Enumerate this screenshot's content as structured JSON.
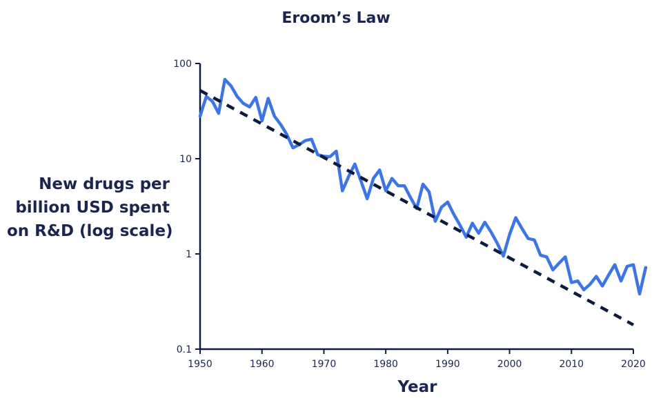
{
  "chart_data": {
    "type": "line",
    "title": "Eroom’s Law",
    "xlabel": "Year",
    "ylabel_lines": [
      "New drugs per",
      "billion USD spent",
      "on R&D (log scale)"
    ],
    "xlim": [
      1950,
      2020
    ],
    "ylim": [
      0.1,
      100
    ],
    "yscale": "log",
    "x_ticks": [
      1950,
      1960,
      1970,
      1980,
      1990,
      2000,
      2010,
      2020
    ],
    "y_ticks": [
      {
        "value": 0.1,
        "label": "0.1"
      },
      {
        "value": 1,
        "label": "1"
      },
      {
        "value": 10,
        "label": "10"
      },
      {
        "value": 100,
        "label": "100"
      }
    ],
    "grid": false,
    "series": [
      {
        "color": "#3d74e6",
        "style": "solid",
        "points": [
          [
            1950,
            28
          ],
          [
            1951,
            45
          ],
          [
            1952,
            40
          ],
          [
            1953,
            30
          ],
          [
            1954,
            68
          ],
          [
            1955,
            58
          ],
          [
            1956,
            45
          ],
          [
            1957,
            38
          ],
          [
            1958,
            35
          ],
          [
            1959,
            44
          ],
          [
            1960,
            25
          ],
          [
            1961,
            43
          ],
          [
            1962,
            28
          ],
          [
            1963,
            23
          ],
          [
            1964,
            18
          ],
          [
            1965,
            13
          ],
          [
            1966,
            14
          ],
          [
            1967,
            15.5
          ],
          [
            1968,
            16
          ],
          [
            1969,
            11
          ],
          [
            1970,
            10.6
          ],
          [
            1971,
            10.5
          ],
          [
            1972,
            12
          ],
          [
            1973,
            4.6
          ],
          [
            1974,
            6.5
          ],
          [
            1975,
            8.8
          ],
          [
            1976,
            5.8
          ],
          [
            1977,
            3.8
          ],
          [
            1978,
            6.2
          ],
          [
            1979,
            7.6
          ],
          [
            1980,
            4.6
          ],
          [
            1981,
            6.2
          ],
          [
            1982,
            5.2
          ],
          [
            1983,
            5.2
          ],
          [
            1984,
            3.9
          ],
          [
            1985,
            3.0
          ],
          [
            1986,
            5.4
          ],
          [
            1987,
            4.5
          ],
          [
            1988,
            2.2
          ],
          [
            1989,
            3.1
          ],
          [
            1990,
            3.5
          ],
          [
            1991,
            2.6
          ],
          [
            1992,
            2.0
          ],
          [
            1993,
            1.5
          ],
          [
            1994,
            2.1
          ],
          [
            1995,
            1.65
          ],
          [
            1996,
            2.15
          ],
          [
            1997,
            1.7
          ],
          [
            1998,
            1.3
          ],
          [
            1999,
            0.95
          ],
          [
            2000,
            1.6
          ],
          [
            2001,
            2.4
          ],
          [
            2002,
            1.85
          ],
          [
            2003,
            1.45
          ],
          [
            2004,
            1.4
          ],
          [
            2005,
            0.97
          ],
          [
            2006,
            0.93
          ],
          [
            2007,
            0.68
          ],
          [
            2008,
            0.8
          ],
          [
            2009,
            0.93
          ],
          [
            2010,
            0.5
          ],
          [
            2011,
            0.52
          ],
          [
            2012,
            0.42
          ],
          [
            2013,
            0.48
          ],
          [
            2014,
            0.58
          ],
          [
            2015,
            0.46
          ],
          [
            2016,
            0.6
          ],
          [
            2017,
            0.77
          ],
          [
            2018,
            0.52
          ],
          [
            2019,
            0.74
          ],
          [
            2020,
            0.77
          ],
          [
            2021,
            0.38
          ],
          [
            2022,
            0.72
          ]
        ]
      },
      {
        "color": "#0d1b3e",
        "style": "dashed",
        "points": [
          [
            1950,
            52
          ],
          [
            2020,
            0.18
          ]
        ]
      }
    ]
  }
}
